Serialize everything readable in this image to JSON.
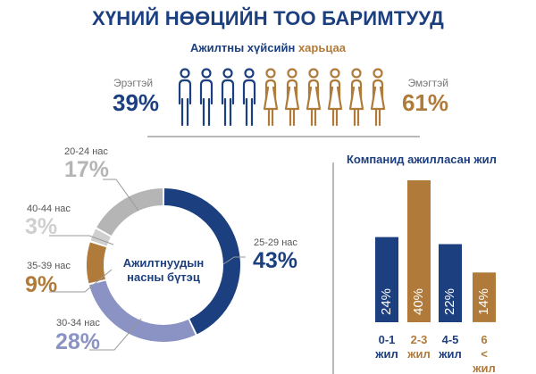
{
  "title": "ХҮНИЙ НӨӨЦИЙН ТОО БАРИМТУУД",
  "gender": {
    "subtitle_part1": "Ажилтны хүйсийн",
    "subtitle_part2": "харьцаа",
    "male_label": "Эрэгтэй",
    "male_pct": "39%",
    "female_label": "Эмэгтэй",
    "female_pct": "61%",
    "male_icons": 4,
    "female_icons": 6
  },
  "colors": {
    "navy": "#1c3f7f",
    "gold": "#b07a3a",
    "gray": "#bdbdbd",
    "lavender": "#8a93c4"
  },
  "chart_data": [
    {
      "type": "pie",
      "title": "Ажилтнуудын насны бүтэц",
      "slices": [
        {
          "label": "25-29 нас",
          "value": 43,
          "display": "43%",
          "color": "#1c3f7f"
        },
        {
          "label": "30-34 нас",
          "value": 28,
          "display": "28%",
          "color": "#8a93c4"
        },
        {
          "label": "35-39 нас",
          "value": 9,
          "display": "9%",
          "color": "#b07a3a"
        },
        {
          "label": "40-44 нас",
          "value": 3,
          "display": "3%",
          "color": "#cfcfcf"
        },
        {
          "label": "20-24 нас",
          "value": 17,
          "display": "17%",
          "color": "#b5b5b5"
        }
      ]
    },
    {
      "type": "bar",
      "title": "Компанид ажилласан жил",
      "categories": [
        "0-1 жил",
        "2-3 жил",
        "4-5 жил",
        "6 < жил"
      ],
      "values": [
        24,
        40,
        22,
        14
      ],
      "labels": [
        "24%",
        "40%",
        "22%",
        "14%"
      ],
      "colors": [
        "#1c3f7f",
        "#b07a3a",
        "#1c3f7f",
        "#b07a3a"
      ],
      "ylim": [
        0,
        40
      ]
    }
  ]
}
